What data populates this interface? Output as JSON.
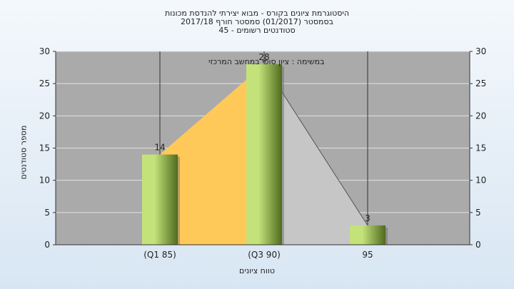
{
  "chart_data": {
    "type": "bar",
    "title_lines": [
      "היסטוגרמת ציונים בקורס - מבוא יצירתי להנדסת מכונות",
      "בסמסטר  (01/2017)  סמסטר חורף 2017/18",
      "45 - סטודנטים רשומים"
    ],
    "annotation": "במשימה : ציון סופי במחשב המרכזי",
    "xlabel": "טווח ציונים",
    "ylabel": "מספר סטודנטים",
    "categories": [
      "(Q1 85)",
      "(Q3 90)",
      "95"
    ],
    "values": [
      14,
      28,
      3
    ],
    "value_labels": [
      "14",
      "28",
      "3"
    ],
    "ylim": [
      0,
      30
    ],
    "yticks": [
      0,
      5,
      10,
      15,
      20,
      25,
      30
    ],
    "ytick_labels": [
      "0",
      "5",
      "10",
      "15",
      "20",
      "25",
      "30"
    ],
    "grid": true,
    "colors": {
      "plot_bg": "#aaaaaa",
      "bar_light": "#c4e27a",
      "bar_dark": "#4e6b1e",
      "q_area": "#ffc95a",
      "tail_area": "#c6c6c6"
    }
  }
}
